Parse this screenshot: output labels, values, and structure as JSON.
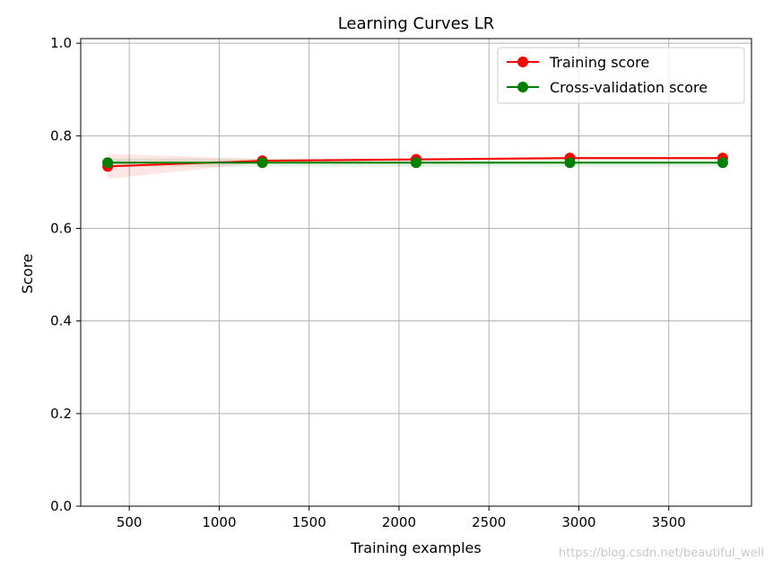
{
  "chart_data": {
    "type": "line",
    "title": "Learning Curves LR",
    "xlabel": "Training examples",
    "ylabel": "Score",
    "xlim": [
      230,
      3960
    ],
    "ylim": [
      0.0,
      1.01
    ],
    "xticks": [
      500,
      1000,
      1500,
      2000,
      2500,
      3000,
      3500
    ],
    "yticks": [
      0.0,
      0.2,
      0.4,
      0.6,
      0.8,
      1.0
    ],
    "xtick_labels": [
      "500",
      "1000",
      "1500",
      "2000",
      "2500",
      "3000",
      "3500"
    ],
    "ytick_labels": [
      "0.0",
      "0.2",
      "0.4",
      "0.6",
      "0.8",
      "1.0"
    ],
    "grid": true,
    "legend": "top-right",
    "x": [
      380,
      1240,
      2095,
      2950,
      3800
    ],
    "series": [
      {
        "name": "Training score",
        "color": "#ff0000",
        "values": [
          0.734,
          0.746,
          0.749,
          0.752,
          0.752
        ],
        "band_low": [
          0.707,
          0.742,
          0.746,
          0.749,
          0.749
        ],
        "band_high": [
          0.761,
          0.75,
          0.752,
          0.755,
          0.755
        ]
      },
      {
        "name": "Cross-validation score",
        "color": "#008000",
        "values": [
          0.742,
          0.742,
          0.742,
          0.742,
          0.742
        ],
        "band_low": [
          0.733,
          0.733,
          0.733,
          0.733,
          0.733
        ],
        "band_high": [
          0.751,
          0.751,
          0.751,
          0.751,
          0.751
        ]
      }
    ]
  },
  "watermark": "https://blog.csdn.net/beautiful_well"
}
